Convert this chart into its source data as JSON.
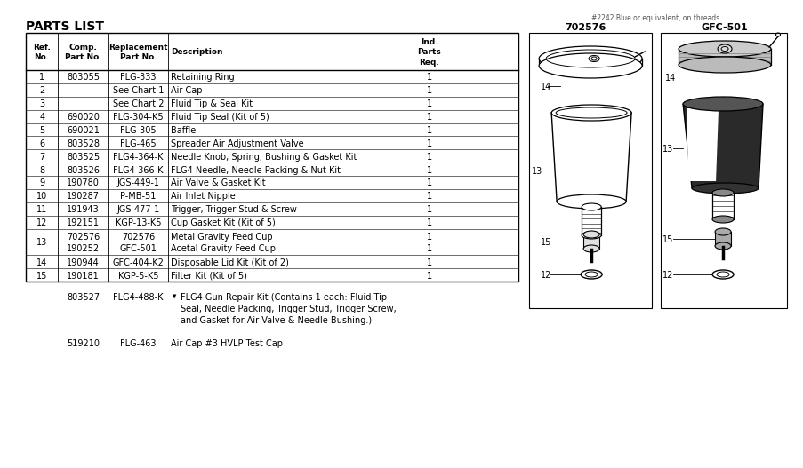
{
  "title": "PARTS LIST",
  "header_note": "#2242 Blue or equivalent, on threads",
  "rows": [
    [
      "1",
      "803055",
      "FLG-333",
      "Retaining Ring",
      "1"
    ],
    [
      "2",
      "",
      "See Chart 1",
      "Air Cap",
      "1"
    ],
    [
      "3",
      "",
      "See Chart 2",
      "Fluid Tip & Seal Kit",
      "1"
    ],
    [
      "4",
      "690020",
      "FLG-304-K5",
      "Fluid Tip Seal (Kit of 5)",
      "1"
    ],
    [
      "5",
      "690021",
      "FLG-305",
      "Baffle",
      "1"
    ],
    [
      "6",
      "803528",
      "FLG-465",
      "Spreader Air Adjustment Valve",
      "1"
    ],
    [
      "7",
      "803525",
      "FLG4-364-K",
      "Needle Knob, Spring, Bushing & Gasket Kit",
      "1"
    ],
    [
      "8",
      "803526",
      "FLG4-366-K",
      "FLG4 Needle, Needle Packing & Nut Kit",
      "1"
    ],
    [
      "9",
      "190780",
      "JGS-449-1",
      "Air Valve & Gasket Kit",
      "1"
    ],
    [
      "10",
      "190287",
      "P-MB-51",
      "Air Inlet Nipple",
      "1"
    ],
    [
      "11",
      "191943",
      "JGS-477-1",
      "Trigger, Trigger Stud & Screw",
      "1"
    ],
    [
      "12",
      "192151",
      "KGP-13-K5",
      "Cup Gasket Kit (Kit of 5)",
      "1"
    ],
    [
      "13",
      "702576\n190252",
      "702576\nGFC-501",
      "Metal Gravity Feed Cup\nAcetal Gravity Feed Cup",
      "1\n1"
    ],
    [
      "14",
      "190944",
      "GFC-404-K2",
      "Disposable Lid Kit (Kit of 2)",
      "1"
    ],
    [
      "15",
      "190181",
      "KGP-5-K5",
      "Filter Kit (Kit of 5)",
      "1"
    ]
  ],
  "footer1_comp": "803527",
  "footer1_repl": "FLG4-488-K",
  "footer1_desc": "FLG4 Gun Repair Kit (Contains 1 each: Fluid Tip\nSeal, Needle Packing, Trigger Stud, Trigger Screw,\nand Gasket for Air Valve & Needle Bushing.)",
  "footer2_comp": "519210",
  "footer2_repl": "FLG-463",
  "footer2_desc": "Air Cap #3 HVLP Test Cap",
  "bg_color": "#ffffff"
}
